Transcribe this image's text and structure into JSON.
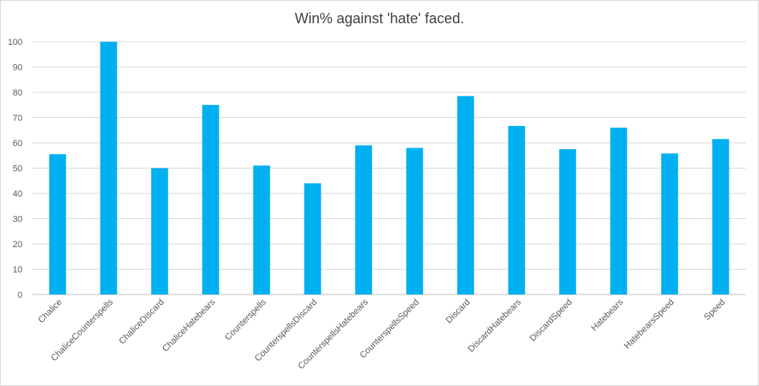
{
  "chart_data": {
    "type": "bar",
    "title": "Win% against 'hate' faced.",
    "xlabel": "",
    "ylabel": "",
    "ylim": [
      0,
      100
    ],
    "yticks": [
      0,
      10,
      20,
      30,
      40,
      50,
      60,
      70,
      80,
      90,
      100
    ],
    "grid": true,
    "legend": "none",
    "bar_color": "#00b0f0",
    "categories": [
      "Chalice",
      "ChaliceCounterspells",
      "ChaliceDiscard",
      "ChaliceHatebears",
      "Counterspells",
      "CounterspellsDiscard",
      "CounterspellsHatebears",
      "CounterspellsSpeed",
      "Discard",
      "DiscardHatebears",
      "DiscardSpeed",
      "Hatebears",
      "HatebearsSpeed",
      "Speed"
    ],
    "values": [
      55.5,
      100,
      50,
      75,
      51,
      44,
      59,
      58,
      78.5,
      66.7,
      57.5,
      66,
      55.8,
      61.5
    ]
  }
}
